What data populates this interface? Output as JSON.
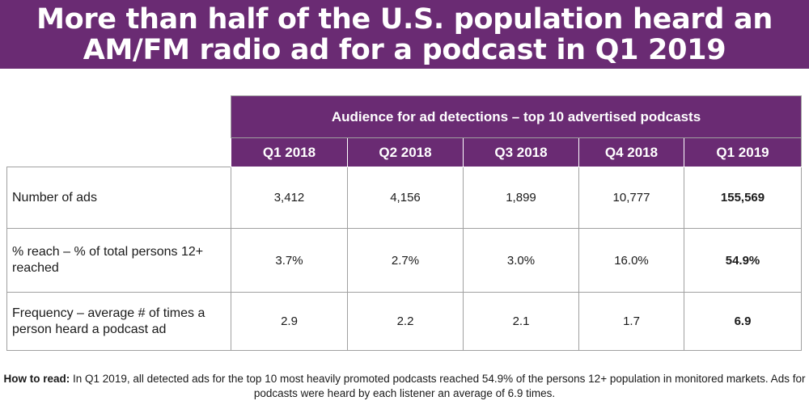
{
  "banner": {
    "title_line1": "More than half of the U.S. population heard an",
    "title_line2": "AM/FM radio ad for a podcast in Q1 2019",
    "background_color": "#6a2b73"
  },
  "table": {
    "super_header": "Audience for ad detections – top 10 advertised podcasts",
    "quarters": [
      "Q1 2018",
      "Q2 2018",
      "Q3 2018",
      "Q4 2018",
      "Q1 2019"
    ],
    "rows": [
      {
        "label": "Number of ads",
        "values": [
          "3,412",
          "4,156",
          "1,899",
          "10,777",
          "155,569"
        ]
      },
      {
        "label": "% reach – % of total persons 12+ reached",
        "values": [
          "3.7%",
          "2.7%",
          "3.0%",
          "16.0%",
          "54.9%"
        ]
      },
      {
        "label": "Frequency – average # of times a person heard a podcast ad",
        "values": [
          "2.9",
          "2.2",
          "2.1",
          "1.7",
          "6.9"
        ]
      }
    ]
  },
  "footnote": {
    "lead": "How to read:",
    "text": " In Q1 2019, all detected ads for the top 10 most heavily promoted podcasts reached 54.9% of the persons 12+ population in monitored markets. Ads for podcasts were heard by each listener an average of 6.9 times."
  }
}
